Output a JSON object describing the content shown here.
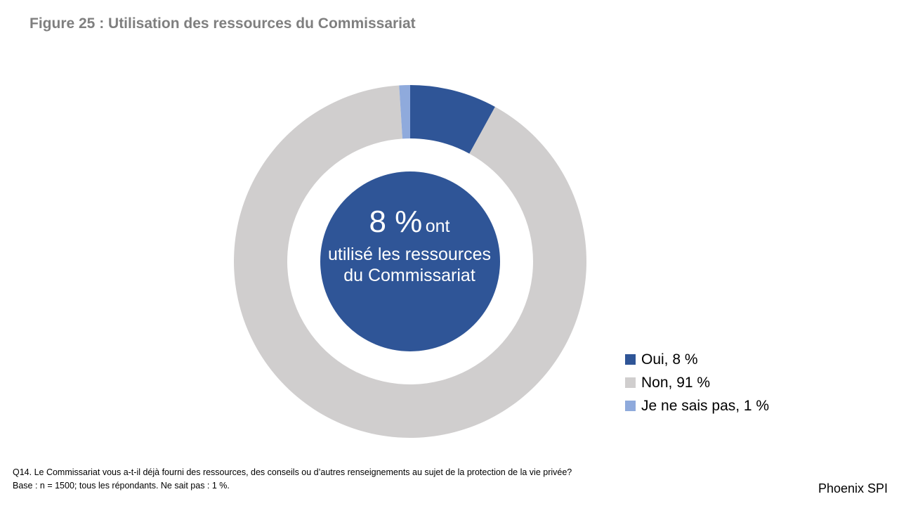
{
  "title": "Figure 25 : Utilisation des ressources du Commissariat",
  "center_label": {
    "value": "8 %",
    "suffix": "ont",
    "rest": "utilisé les ressources du Commissariat"
  },
  "chart_data": {
    "type": "pie",
    "variant": "donut",
    "categories": [
      "Oui",
      "Non",
      "Je ne sais pas"
    ],
    "values": [
      8,
      91,
      1
    ],
    "unit": "%",
    "colors": [
      "#2f5597",
      "#d0cece",
      "#8faadc"
    ],
    "legend_labels": [
      "Oui, 8 %",
      "Non, 91 %",
      "Je ne sais pas, 1 %"
    ],
    "legend_position": "bottom-right"
  },
  "footnote": {
    "question": "Q14. Le Commissariat vous a-t-il déjà fourni des ressources, des conseils ou d’autres renseignements au sujet de la protection de la vie privée?",
    "base": "Base : n = 1500; tous les répondants. Ne sait pas : 1 %."
  },
  "brand": "Phoenix SPI"
}
